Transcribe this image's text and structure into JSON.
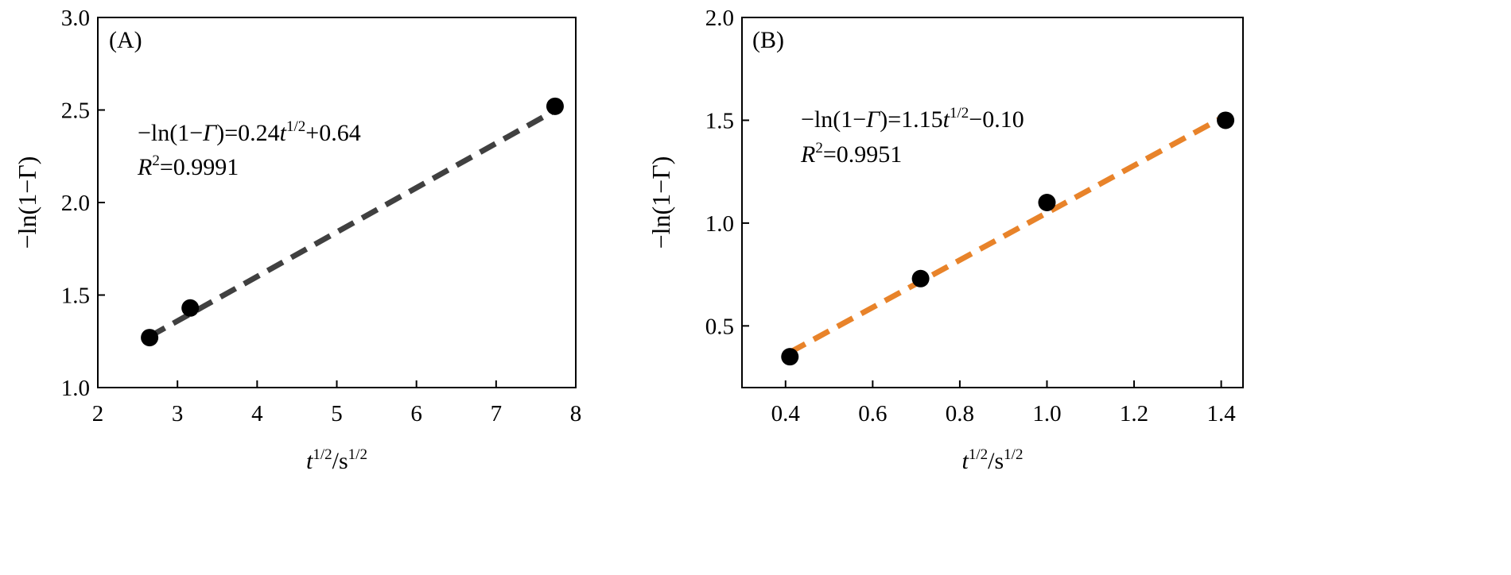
{
  "chart_data": [
    {
      "type": "scatter",
      "panel_label": "(A)",
      "xlabel": {
        "base": "t",
        "sup1": "1/2",
        "sep": "/s",
        "sup2": "1/2"
      },
      "ylabel": "−ln(1−Γ)",
      "xlim": [
        2,
        8
      ],
      "ylim": [
        1.0,
        3.0
      ],
      "xticks": [
        "2",
        "3",
        "4",
        "5",
        "6",
        "7",
        "8"
      ],
      "yticks": [
        "1.0",
        "1.5",
        "2.0",
        "2.5",
        "3.0"
      ],
      "x": [
        2.65,
        3.16,
        7.74
      ],
      "y": [
        1.27,
        1.43,
        2.52
      ],
      "fit": {
        "slope": 0.24,
        "intercept": 0.64,
        "x_range": [
          2.65,
          7.74
        ],
        "color": "#404040"
      },
      "marker_color": "#000000",
      "equation": {
        "pre": "−ln(1−",
        "gamma": "Γ",
        "mid": ")=0.24",
        "t": "t",
        "sup": "1/2",
        "post": "+0.64"
      },
      "r2": {
        "r": "R",
        "sup": "2",
        "value": "=0.9991"
      }
    },
    {
      "type": "scatter",
      "panel_label": "(B)",
      "xlabel": {
        "base": "t",
        "sup1": "1/2",
        "sep": "/s",
        "sup2": "1/2"
      },
      "ylabel": "−ln(1−Γ)",
      "xlim": [
        0.3,
        1.45
      ],
      "ylim": [
        0.2,
        2.0
      ],
      "xticks": [
        "0.4",
        "0.6",
        "0.8",
        "1.0",
        "1.2",
        "1.4"
      ],
      "yticks": [
        "0.5",
        "1.0",
        "1.5",
        "2.0"
      ],
      "x": [
        0.41,
        0.71,
        1.0,
        1.41
      ],
      "y": [
        0.35,
        0.73,
        1.1,
        1.5
      ],
      "fit": {
        "slope": 1.15,
        "intercept": -0.1,
        "x_range": [
          0.41,
          1.41
        ],
        "color": "#E8832A"
      },
      "marker_color": "#000000",
      "equation": {
        "pre": "−ln(1−",
        "gamma": "Γ",
        "mid": ")=1.15",
        "t": "t",
        "sup": "1/2",
        "post": "−0.10"
      },
      "r2": {
        "r": "R",
        "sup": "2",
        "value": "=0.9951"
      }
    }
  ]
}
